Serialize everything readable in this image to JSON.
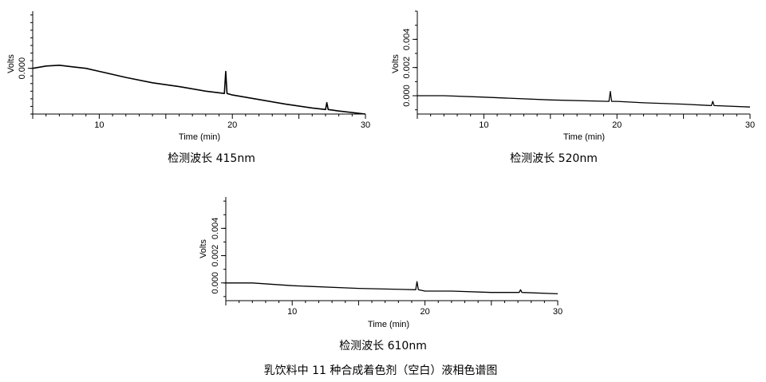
{
  "figure_caption": "乳饮料中 11 种合成着色剂（空白）液相色谱图",
  "chart_data": [
    {
      "type": "line",
      "caption": "检测波长 415nm",
      "xlabel": "Time (min)",
      "ylabel": "Volts",
      "xlim": [
        5,
        30
      ],
      "ylim": [
        -0.006,
        0.0075
      ],
      "x_ticks": [
        10,
        20,
        30
      ],
      "y_ticks": [
        0.0
      ],
      "y_tick_labels": [
        "0.000"
      ],
      "series": [
        {
          "x": [
            5,
            6,
            7,
            8,
            9,
            10,
            12,
            14,
            16,
            18,
            19.4,
            19.5,
            19.6,
            20,
            22,
            24,
            26,
            27,
            27.1,
            27.2,
            28,
            30
          ],
          "y": [
            0.0,
            0.0003,
            0.0004,
            0.0002,
            0.0,
            -0.0004,
            -0.0012,
            -0.0019,
            -0.0024,
            -0.003,
            -0.0033,
            -0.0004,
            -0.0033,
            -0.0035,
            -0.0041,
            -0.0047,
            -0.0052,
            -0.0054,
            -0.0045,
            -0.0054,
            -0.0056,
            -0.006
          ]
        }
      ]
    },
    {
      "type": "line",
      "caption": "检测波长 520nm",
      "xlabel": "Time (min)",
      "ylabel": "Volts",
      "xlim": [
        5,
        30
      ],
      "ylim": [
        -0.0013,
        0.006
      ],
      "x_ticks": [
        10,
        20,
        30
      ],
      "y_ticks": [
        0.0,
        0.002,
        0.004
      ],
      "y_tick_labels": [
        "0.000",
        "0.002",
        "0.004"
      ],
      "series": [
        {
          "x": [
            5,
            7,
            10,
            15,
            19.4,
            19.5,
            19.6,
            20,
            22,
            25,
            27.1,
            27.2,
            27.3,
            30
          ],
          "y": [
            0.0,
            0.0,
            -0.0001,
            -0.0003,
            -0.0004,
            0.0003,
            -0.0004,
            -0.0004,
            -0.0005,
            -0.0006,
            -0.0007,
            -0.0004,
            -0.0007,
            -0.0008
          ]
        }
      ]
    },
    {
      "type": "line",
      "caption": "检测波长 610nm",
      "xlabel": "Time (min)",
      "ylabel": "Volts",
      "xlim": [
        5,
        30
      ],
      "ylim": [
        -0.0013,
        0.0063
      ],
      "x_ticks": [
        10,
        20,
        30
      ],
      "y_ticks": [
        0.0,
        0.002,
        0.004
      ],
      "y_tick_labels": [
        "0.000",
        "0.002",
        "0.004"
      ],
      "series": [
        {
          "x": [
            5,
            7,
            10,
            15,
            19.3,
            19.4,
            19.5,
            20,
            22,
            25,
            27.1,
            27.2,
            27.3,
            30
          ],
          "y": [
            0.0,
            0.0,
            -0.0002,
            -0.0004,
            -0.0005,
            0.0001,
            -0.0005,
            -0.0006,
            -0.0006,
            -0.0007,
            -0.0007,
            -0.0005,
            -0.0007,
            -0.0008
          ]
        }
      ]
    }
  ]
}
